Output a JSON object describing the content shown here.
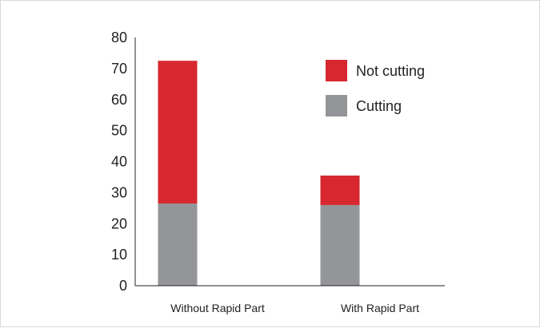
{
  "chart_data": {
    "type": "bar",
    "stacked": true,
    "categories": [
      "Without Rapid Part",
      "With Rapid Part"
    ],
    "series": [
      {
        "name": "Cutting",
        "values": [
          26.5,
          26.0
        ],
        "color": "#939598"
      },
      {
        "name": "Not cutting",
        "values": [
          46.0,
          9.5
        ],
        "color": "#d7282f"
      }
    ],
    "legend_order": [
      "Not cutting",
      "Cutting"
    ],
    "legend_position": "top-right",
    "yticks": [
      0,
      10,
      20,
      30,
      40,
      50,
      60,
      70,
      80
    ],
    "ylim": [
      0,
      80
    ],
    "grid": false
  }
}
